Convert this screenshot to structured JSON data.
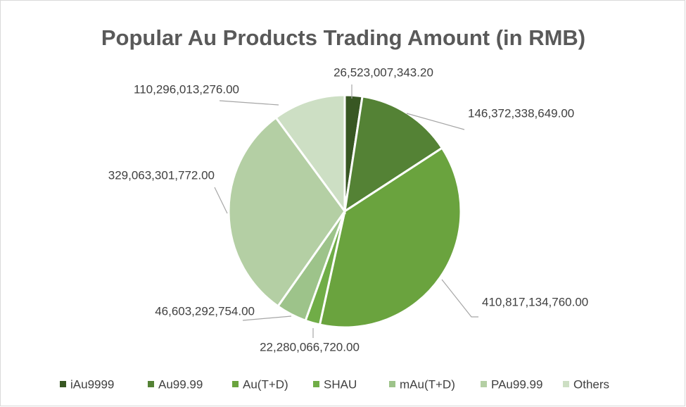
{
  "chart_data": {
    "type": "pie",
    "title": "Popular Au Products Trading Amount  (in RMB)",
    "categories": [
      "iAu9999",
      "Au99.99",
      "Au(T+D)",
      "SHAU",
      "mAu(T+D)",
      "PAu99.99",
      "Others"
    ],
    "values": [
      26523007343.2,
      146372338649,
      410817134760,
      22280066720,
      46603292754,
      329063301772,
      110296013276
    ],
    "value_labels": [
      "26,523,007,343.20",
      "146,372,338,649.00",
      "410,817,134,760.00",
      "22,280,066,720.00",
      "46,603,292,754.00",
      "329,063,301,772.00",
      "110,296,013,276.00"
    ],
    "colors": [
      "#385723",
      "#548235",
      "#6aa33e",
      "#70ad47",
      "#9dc38a",
      "#b4cfa4",
      "#cddfc4"
    ],
    "legend": "bottom"
  }
}
